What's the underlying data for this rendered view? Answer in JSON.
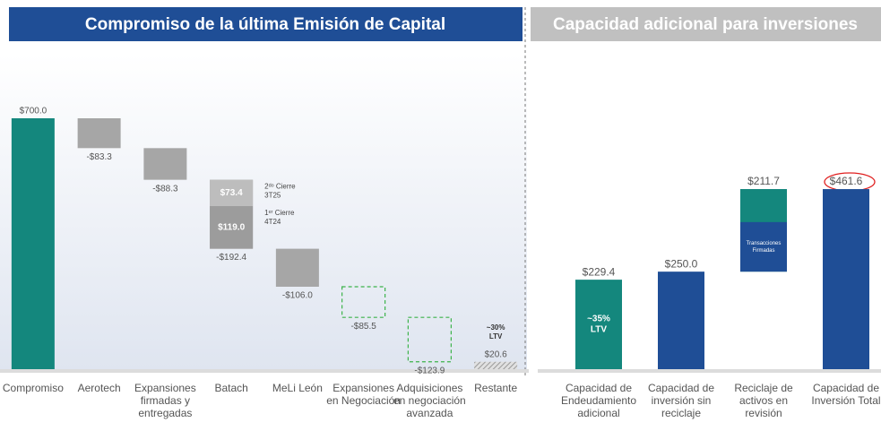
{
  "chart_data": [
    {
      "type": "waterfall",
      "title": "Compromiso de la última Emisión de Capital",
      "categories": [
        "Compromiso",
        "Aerotech",
        "Expansiones firmadas y entregadas",
        "Batach",
        "MeLi León",
        "Expansiones en Negociación",
        "Adquisiciones en negociación avanzada",
        "Restante"
      ],
      "values": [
        700.0,
        -83.3,
        -88.3,
        -192.4,
        -106.0,
        -85.5,
        -123.9,
        20.6
      ],
      "value_labels": [
        "$700.0",
        "-$83.3",
        "-$88.3",
        "-$192.4",
        "-$106.0",
        "-$85.5",
        "-$123.9",
        "$20.6"
      ],
      "bar_kinds": [
        "total",
        "delta",
        "delta",
        "delta",
        "delta",
        "delta",
        "delta",
        "total"
      ],
      "bar_styles": [
        "fill",
        "fill",
        "fill",
        "split",
        "fill",
        "dashed",
        "dashed",
        "hatched"
      ],
      "colors": [
        "#14877d",
        "#a6a6a6",
        "#a6a6a6",
        "#a0a0a0",
        "#a6a6a6",
        "#3cb34a",
        "#3cb34a",
        "#b0b0b0"
      ],
      "segments": [
        {
          "value": 73.4,
          "label": "$73.4",
          "note": [
            "2ᵈᵒ Cierre",
            "3T25"
          ],
          "color": "#bdbdbd"
        },
        {
          "value": 119.0,
          "label": "$119.0",
          "note": [
            "1ᵉʳ Cierre",
            "4T24"
          ],
          "color": "#9c9c9c"
        }
      ],
      "bar_notes": [
        null,
        null,
        null,
        null,
        null,
        null,
        null,
        [
          "~30%",
          "LTV"
        ]
      ]
    },
    {
      "type": "waterfall",
      "title": "Capacidad adicional para inversiones",
      "categories": [
        "Capacidad de Endeudamiento adicional",
        "Capacidad de inversión sin reciclaje",
        "Reciclaje de activos en revisión",
        "Capacidad de Inversión Total"
      ],
      "values": [
        229.4,
        250.0,
        211.7,
        461.6
      ],
      "value_labels": [
        "$229.4",
        "$250.0",
        "$211.7",
        "$461.6"
      ],
      "bar_kinds": [
        "total",
        "total",
        "delta",
        "total"
      ],
      "bar_styles": [
        "fill",
        "fill",
        "split",
        "fill"
      ],
      "colors": [
        "#14877d",
        "#1f4e96",
        "#14877d",
        "#1f4e96"
      ],
      "split_color": "#1f4e96",
      "bar_notes": [
        [
          "~35%",
          "LTV"
        ],
        null,
        [
          "Transacciones",
          "Firmadas"
        ],
        null
      ]
    }
  ]
}
